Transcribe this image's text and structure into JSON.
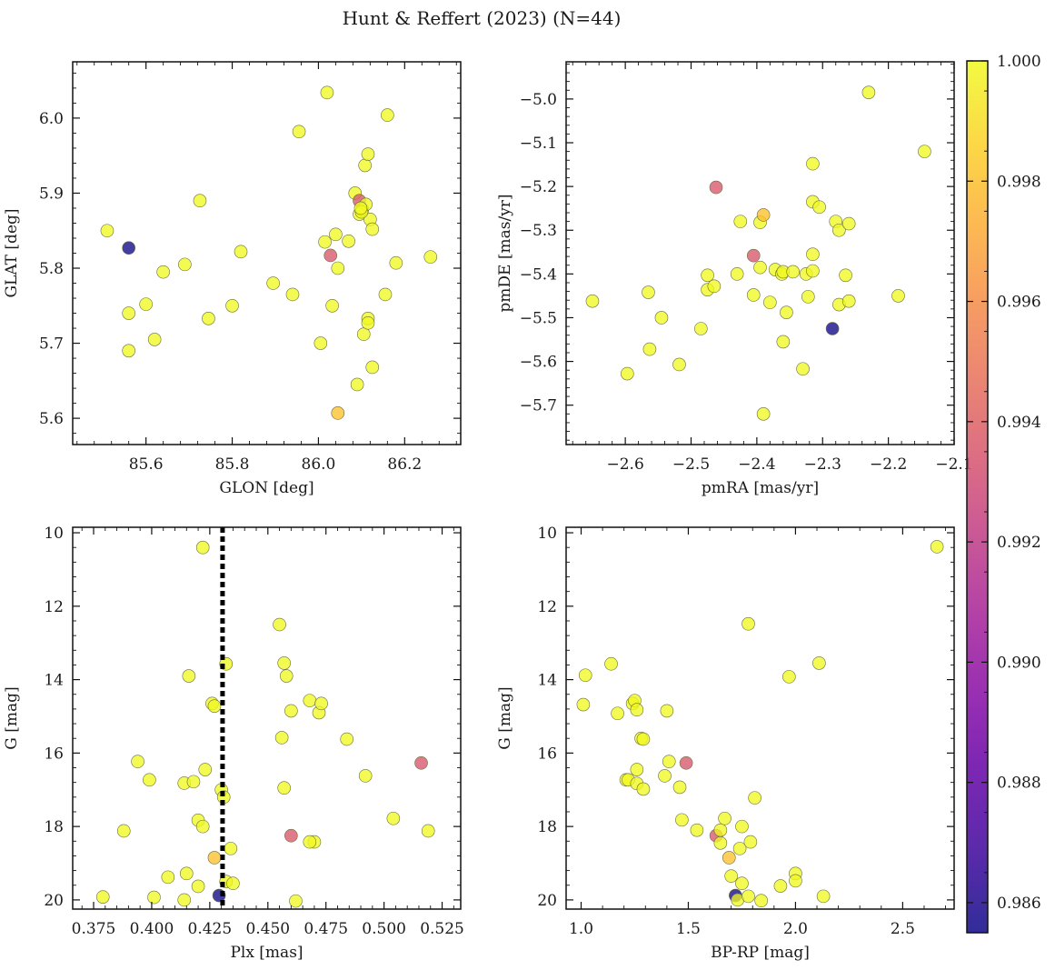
{
  "figure": {
    "title": "Hunt & Reffert (2023) (N=44)"
  },
  "colorbar": {
    "min": 0.9855,
    "max": 1.0,
    "tick_labels": [
      "0.986",
      "0.988",
      "0.990",
      "0.992",
      "0.994",
      "0.996",
      "0.998",
      "1.000"
    ],
    "ticks": [
      0.986,
      0.988,
      0.99,
      0.992,
      0.994,
      0.996,
      0.998,
      1.0
    ],
    "colormap": "plasma"
  },
  "chart_data": [
    {
      "type": "scatter",
      "xlabel": "GLON [deg]",
      "ylabel": "GLAT [deg]",
      "xlim": [
        85.43,
        86.33
      ],
      "ylim": [
        5.565,
        6.075
      ],
      "xticks": [
        85.6,
        85.8,
        86.0,
        86.2
      ],
      "xtick_labels": [
        "85.6",
        "85.8",
        "86.0",
        "86.2"
      ],
      "yticks": [
        5.6,
        5.7,
        5.8,
        5.9,
        6.0
      ],
      "ytick_labels": [
        "5.6",
        "5.7",
        "5.8",
        "5.9",
        "6.0"
      ],
      "points": [
        [
          85.51,
          5.85,
          1.0
        ],
        [
          85.56,
          5.827,
          0.9856
        ],
        [
          85.56,
          5.74,
          1.0
        ],
        [
          85.56,
          5.69,
          1.0
        ],
        [
          85.6,
          5.752,
          1.0
        ],
        [
          85.62,
          5.705,
          1.0
        ],
        [
          85.64,
          5.795,
          1.0
        ],
        [
          85.69,
          5.805,
          1.0
        ],
        [
          85.725,
          5.89,
          1.0
        ],
        [
          85.745,
          5.733,
          1.0
        ],
        [
          85.8,
          5.75,
          1.0
        ],
        [
          85.82,
          5.822,
          1.0
        ],
        [
          85.895,
          5.78,
          1.0
        ],
        [
          85.94,
          5.765,
          1.0
        ],
        [
          85.955,
          5.982,
          1.0
        ],
        [
          86.005,
          5.7,
          1.0
        ],
        [
          86.015,
          5.835,
          1.0
        ],
        [
          86.02,
          6.034,
          1.0
        ],
        [
          86.028,
          5.817,
          0.9935
        ],
        [
          86.032,
          5.75,
          1.0
        ],
        [
          86.04,
          5.845,
          1.0
        ],
        [
          86.045,
          5.8,
          1.0
        ],
        [
          86.045,
          5.607,
          0.998
        ],
        [
          86.07,
          5.836,
          1.0
        ],
        [
          86.085,
          5.9,
          1.0
        ],
        [
          86.09,
          5.645,
          1.0
        ],
        [
          86.095,
          5.89,
          0.9935
        ],
        [
          86.095,
          5.872,
          1.0
        ],
        [
          86.102,
          5.878,
          1.0
        ],
        [
          86.105,
          5.712,
          1.0
        ],
        [
          86.11,
          5.885,
          1.0
        ],
        [
          86.108,
          5.937,
          1.0
        ],
        [
          86.115,
          5.952,
          1.0
        ],
        [
          86.115,
          5.733,
          1.0
        ],
        [
          86.115,
          5.727,
          1.0
        ],
        [
          86.12,
          5.865,
          1.0
        ],
        [
          86.125,
          5.852,
          1.0
        ],
        [
          86.125,
          5.668,
          1.0
        ],
        [
          86.155,
          5.765,
          1.0
        ],
        [
          86.16,
          6.004,
          1.0
        ],
        [
          86.18,
          5.807,
          1.0
        ],
        [
          86.26,
          5.815,
          1.0
        ],
        [
          86.1,
          5.875,
          1.0
        ],
        [
          86.098,
          5.88,
          1.0
        ]
      ]
    },
    {
      "type": "scatter",
      "xlabel": "pmRA [mas/yr]",
      "ylabel": "pmDE [mas/yr]",
      "xlim": [
        -2.69,
        -2.1
      ],
      "ylim": [
        -5.79,
        -4.915
      ],
      "xticks": [
        -2.6,
        -2.5,
        -2.4,
        -2.3,
        -2.2,
        -2.1
      ],
      "xtick_labels": [
        "−2.6",
        "−2.5",
        "−2.4",
        "−2.3",
        "−2.2",
        "−2.1"
      ],
      "yticks": [
        -5.7,
        -5.6,
        -5.5,
        -5.4,
        -5.3,
        -5.2,
        -5.1,
        -5.0
      ],
      "ytick_labels": [
        "−5.7",
        "−5.6",
        "−5.5",
        "−5.4",
        "−5.3",
        "−5.2",
        "−5.1",
        "−5.0"
      ],
      "points": [
        [
          -2.65,
          -5.462,
          1.0
        ],
        [
          -2.597,
          -5.628,
          1.0
        ],
        [
          -2.565,
          -5.442,
          1.0
        ],
        [
          -2.563,
          -5.572,
          1.0
        ],
        [
          -2.545,
          -5.5,
          1.0
        ],
        [
          -2.518,
          -5.607,
          1.0
        ],
        [
          -2.485,
          -5.525,
          1.0
        ],
        [
          -2.475,
          -5.403,
          1.0
        ],
        [
          -2.475,
          -5.436,
          1.0
        ],
        [
          -2.465,
          -5.428,
          1.0
        ],
        [
          -2.462,
          -5.202,
          0.9935
        ],
        [
          -2.43,
          -5.4,
          1.0
        ],
        [
          -2.425,
          -5.28,
          1.0
        ],
        [
          -2.405,
          -5.358,
          0.9935
        ],
        [
          -2.405,
          -5.448,
          1.0
        ],
        [
          -2.395,
          -5.282,
          1.0
        ],
        [
          -2.395,
          -5.385,
          1.0
        ],
        [
          -2.39,
          -5.265,
          0.998
        ],
        [
          -2.39,
          -5.72,
          1.0
        ],
        [
          -2.38,
          -5.465,
          1.0
        ],
        [
          -2.372,
          -5.39,
          1.0
        ],
        [
          -2.362,
          -5.4,
          1.0
        ],
        [
          -2.36,
          -5.395,
          1.0
        ],
        [
          -2.36,
          -5.555,
          1.0
        ],
        [
          -2.355,
          -5.488,
          1.0
        ],
        [
          -2.345,
          -5.395,
          1.0
        ],
        [
          -2.33,
          -5.617,
          1.0
        ],
        [
          -2.325,
          -5.4,
          1.0
        ],
        [
          -2.322,
          -5.452,
          1.0
        ],
        [
          -2.315,
          -5.148,
          1.0
        ],
        [
          -2.315,
          -5.235,
          1.0
        ],
        [
          -2.315,
          -5.355,
          1.0
        ],
        [
          -2.315,
          -5.393,
          1.0
        ],
        [
          -2.305,
          -5.247,
          1.0
        ],
        [
          -2.285,
          -5.525,
          0.9856
        ],
        [
          -2.28,
          -5.28,
          1.0
        ],
        [
          -2.275,
          -5.3,
          1.0
        ],
        [
          -2.275,
          -5.47,
          1.0
        ],
        [
          -2.265,
          -5.403,
          1.0
        ],
        [
          -2.26,
          -5.285,
          1.0
        ],
        [
          -2.26,
          -5.462,
          1.0
        ],
        [
          -2.23,
          -4.985,
          1.0
        ],
        [
          -2.185,
          -5.45,
          1.0
        ],
        [
          -2.145,
          -5.12,
          1.0
        ]
      ]
    },
    {
      "type": "scatter",
      "xlabel": "Plx [mas]",
      "ylabel": "G [mag]",
      "xlim": [
        0.366,
        0.533
      ],
      "ylim": [
        20.25,
        9.85
      ],
      "xticks": [
        0.375,
        0.4,
        0.425,
        0.45,
        0.475,
        0.5,
        0.525
      ],
      "xtick_labels": [
        "0.375",
        "0.400",
        "0.425",
        "0.450",
        "0.475",
        "0.500",
        "0.525"
      ],
      "yticks": [
        10,
        12,
        14,
        16,
        18,
        20
      ],
      "ytick_labels": [
        "10",
        "12",
        "14",
        "16",
        "18",
        "20"
      ],
      "vline": 0.4305,
      "points": [
        [
          0.379,
          19.92,
          1.0
        ],
        [
          0.388,
          18.12,
          1.0
        ],
        [
          0.394,
          16.23,
          1.0
        ],
        [
          0.399,
          16.73,
          1.0
        ],
        [
          0.401,
          19.93,
          1.0
        ],
        [
          0.407,
          19.38,
          1.0
        ],
        [
          0.414,
          20.0,
          1.0
        ],
        [
          0.414,
          16.82,
          1.0
        ],
        [
          0.415,
          19.28,
          1.0
        ],
        [
          0.416,
          13.9,
          1.0
        ],
        [
          0.418,
          16.78,
          1.0
        ],
        [
          0.42,
          17.83,
          1.0
        ],
        [
          0.42,
          19.63,
          1.0
        ],
        [
          0.422,
          18.0,
          1.0
        ],
        [
          0.422,
          10.4,
          1.0
        ],
        [
          0.423,
          16.45,
          1.0
        ],
        [
          0.426,
          14.65,
          1.0
        ],
        [
          0.427,
          14.72,
          1.0
        ],
        [
          0.427,
          18.85,
          0.998
        ],
        [
          0.429,
          19.88,
          0.9856
        ],
        [
          0.43,
          17.0,
          1.0
        ],
        [
          0.431,
          17.2,
          1.0
        ],
        [
          0.432,
          13.57,
          1.0
        ],
        [
          0.432,
          19.5,
          1.0
        ],
        [
          0.434,
          18.6,
          1.0
        ],
        [
          0.435,
          19.55,
          1.0
        ],
        [
          0.455,
          12.5,
          1.0
        ],
        [
          0.457,
          13.55,
          1.0
        ],
        [
          0.458,
          13.9,
          1.0
        ],
        [
          0.456,
          15.58,
          1.0
        ],
        [
          0.457,
          16.95,
          1.0
        ],
        [
          0.46,
          14.85,
          1.0
        ],
        [
          0.462,
          20.03,
          1.0
        ],
        [
          0.46,
          18.25,
          0.9935
        ],
        [
          0.468,
          14.57,
          1.0
        ],
        [
          0.472,
          14.9,
          1.0
        ],
        [
          0.473,
          14.65,
          1.0
        ],
        [
          0.47,
          18.42,
          1.0
        ],
        [
          0.468,
          18.42,
          1.0
        ],
        [
          0.484,
          15.62,
          1.0
        ],
        [
          0.492,
          16.62,
          1.0
        ],
        [
          0.504,
          17.78,
          1.0
        ],
        [
          0.516,
          16.27,
          0.9935
        ],
        [
          0.519,
          18.12,
          1.0
        ]
      ]
    },
    {
      "type": "scatter",
      "xlabel": "BP-RP [mag]",
      "ylabel": "G [mag]",
      "xlim": [
        0.93,
        2.74
      ],
      "ylim": [
        20.25,
        9.85
      ],
      "xticks": [
        1.0,
        1.5,
        2.0,
        2.5
      ],
      "xtick_labels": [
        "1.0",
        "1.5",
        "2.0",
        "2.5"
      ],
      "yticks": [
        10,
        12,
        14,
        16,
        18,
        20
      ],
      "ytick_labels": [
        "10",
        "12",
        "14",
        "16",
        "18",
        "20"
      ],
      "points": [
        [
          1.02,
          13.88,
          1.0
        ],
        [
          1.01,
          14.68,
          1.0
        ],
        [
          1.14,
          13.57,
          1.0
        ],
        [
          1.17,
          14.92,
          1.0
        ],
        [
          1.21,
          16.73,
          1.0
        ],
        [
          1.22,
          16.73,
          1.0
        ],
        [
          1.24,
          14.65,
          1.0
        ],
        [
          1.25,
          14.57,
          1.0
        ],
        [
          1.26,
          14.82,
          1.0
        ],
        [
          1.26,
          16.45,
          1.0
        ],
        [
          1.26,
          16.83,
          1.0
        ],
        [
          1.28,
          15.6,
          1.0
        ],
        [
          1.29,
          15.62,
          1.0
        ],
        [
          1.29,
          16.98,
          1.0
        ],
        [
          1.39,
          16.62,
          1.0
        ],
        [
          1.4,
          14.85,
          1.0
        ],
        [
          1.41,
          16.23,
          1.0
        ],
        [
          1.46,
          16.93,
          1.0
        ],
        [
          1.47,
          17.82,
          1.0
        ],
        [
          1.49,
          16.27,
          0.9935
        ],
        [
          1.54,
          18.1,
          1.0
        ],
        [
          1.63,
          18.25,
          0.9935
        ],
        [
          1.65,
          18.45,
          1.0
        ],
        [
          1.65,
          18.1,
          1.0
        ],
        [
          1.67,
          17.78,
          1.0
        ],
        [
          1.69,
          18.85,
          0.998
        ],
        [
          1.7,
          19.35,
          1.0
        ],
        [
          1.72,
          19.88,
          0.9856
        ],
        [
          1.73,
          20.0,
          1.0
        ],
        [
          1.74,
          18.6,
          1.0
        ],
        [
          1.75,
          18.0,
          1.0
        ],
        [
          1.75,
          19.55,
          1.0
        ],
        [
          1.78,
          12.48,
          1.0
        ],
        [
          1.78,
          19.9,
          1.0
        ],
        [
          1.79,
          18.42,
          1.0
        ],
        [
          1.81,
          17.22,
          1.0
        ],
        [
          1.84,
          20.02,
          1.0
        ],
        [
          1.93,
          19.62,
          1.0
        ],
        [
          1.97,
          13.92,
          1.0
        ],
        [
          2.0,
          19.28,
          1.0
        ],
        [
          2.0,
          19.48,
          1.0
        ],
        [
          2.11,
          13.55,
          1.0
        ],
        [
          2.13,
          19.9,
          1.0
        ],
        [
          2.66,
          10.38,
          1.0
        ]
      ]
    }
  ]
}
